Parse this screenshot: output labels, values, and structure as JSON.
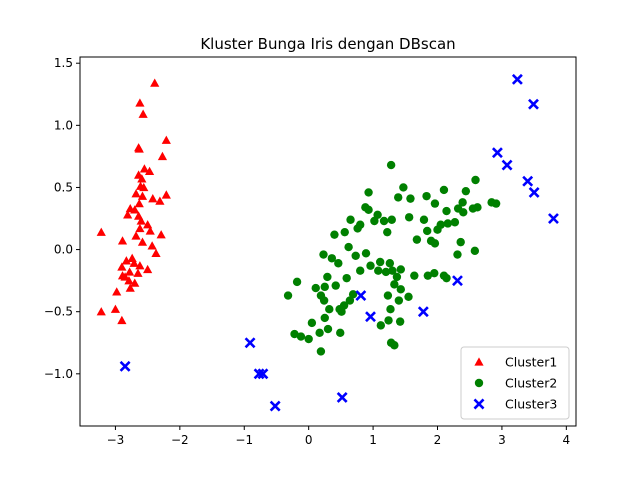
{
  "chart_data": {
    "type": "scatter",
    "title": "Kluster Bunga Iris dengan DBscan",
    "xlabel": "",
    "ylabel": "",
    "xlim": [
      -3.55,
      4.15
    ],
    "ylim": [
      -1.42,
      1.55
    ],
    "x_ticks": [
      -3,
      -2,
      -1,
      0,
      1,
      2,
      3,
      4
    ],
    "y_ticks": [
      -1.0,
      -0.5,
      0.0,
      0.5,
      1.0,
      1.5
    ],
    "x_tick_labels": [
      "−3",
      "−2",
      "−1",
      "0",
      "1",
      "2",
      "3",
      "4"
    ],
    "y_tick_labels": [
      "−1.0",
      "−0.5",
      "0.0",
      "0.5",
      "1.0",
      "1.5"
    ],
    "grid": false,
    "legend_position": "lower-right",
    "series": [
      {
        "name": "Cluster1",
        "color": "#ff0000",
        "marker": "triangle",
        "points": [
          [
            -2.39,
            1.34
          ],
          [
            -2.62,
            1.18
          ],
          [
            -2.57,
            1.09
          ],
          [
            -2.21,
            0.88
          ],
          [
            -2.64,
            0.82
          ],
          [
            -2.63,
            0.81
          ],
          [
            -2.27,
            0.75
          ],
          [
            -2.55,
            0.65
          ],
          [
            -2.47,
            0.63
          ],
          [
            -2.64,
            0.6
          ],
          [
            -2.59,
            0.57
          ],
          [
            -2.61,
            0.51
          ],
          [
            -2.56,
            0.5
          ],
          [
            -2.68,
            0.45
          ],
          [
            -2.21,
            0.44
          ],
          [
            -2.58,
            0.43
          ],
          [
            -2.42,
            0.41
          ],
          [
            -2.31,
            0.39
          ],
          [
            -2.63,
            0.37
          ],
          [
            -2.77,
            0.33
          ],
          [
            -2.7,
            0.32
          ],
          [
            -2.81,
            0.28
          ],
          [
            -2.64,
            0.27
          ],
          [
            -2.6,
            0.23
          ],
          [
            -2.5,
            0.2
          ],
          [
            -2.62,
            0.17
          ],
          [
            -3.22,
            0.14
          ],
          [
            -2.46,
            0.15
          ],
          [
            -2.68,
            0.11
          ],
          [
            -2.29,
            0.12
          ],
          [
            -2.89,
            0.07
          ],
          [
            -2.58,
            0.06
          ],
          [
            -2.43,
            0.03
          ],
          [
            -2.37,
            -0.03
          ],
          [
            -2.74,
            -0.07
          ],
          [
            -2.9,
            -0.14
          ],
          [
            -2.83,
            -0.09
          ],
          [
            -2.71,
            -0.11
          ],
          [
            -2.62,
            -0.13
          ],
          [
            -2.5,
            -0.16
          ],
          [
            -2.78,
            -0.18
          ],
          [
            -2.89,
            -0.21
          ],
          [
            -2.65,
            -0.19
          ],
          [
            -2.79,
            -0.25
          ],
          [
            -2.7,
            -0.27
          ],
          [
            -2.85,
            -0.22
          ],
          [
            -2.77,
            -0.31
          ],
          [
            -2.98,
            -0.34
          ],
          [
            -3.22,
            -0.5
          ],
          [
            -3.0,
            -0.48
          ],
          [
            -2.9,
            -0.57
          ]
        ]
      },
      {
        "name": "Cluster2",
        "color": "#008000",
        "marker": "circle",
        "points": [
          [
            1.28,
            0.68
          ],
          [
            1.47,
            0.5
          ],
          [
            1.58,
            0.41
          ],
          [
            1.39,
            0.42
          ],
          [
            0.93,
            0.46
          ],
          [
            0.93,
            0.32
          ],
          [
            0.8,
            0.2
          ],
          [
            0.88,
            0.34
          ],
          [
            1.07,
            0.28
          ],
          [
            1.17,
            0.23
          ],
          [
            0.76,
            0.17
          ],
          [
            1.02,
            0.23
          ],
          [
            1.22,
            0.14
          ],
          [
            1.29,
            0.24
          ],
          [
            1.56,
            0.26
          ],
          [
            1.79,
            0.24
          ],
          [
            1.83,
            0.43
          ],
          [
            1.96,
            0.37
          ],
          [
            2.14,
            0.31
          ],
          [
            2.32,
            0.33
          ],
          [
            2.39,
            0.38
          ],
          [
            2.4,
            0.3
          ],
          [
            2.59,
            0.56
          ],
          [
            2.44,
            0.47
          ],
          [
            2.62,
            0.34
          ],
          [
            2.84,
            0.38
          ],
          [
            2.55,
            0.33
          ],
          [
            2.91,
            0.37
          ],
          [
            2.1,
            0.48
          ],
          [
            2.27,
            0.22
          ],
          [
            2.0,
            0.16
          ],
          [
            2.05,
            0.2
          ],
          [
            1.9,
            0.07
          ],
          [
            1.96,
            0.05
          ],
          [
            1.68,
            0.08
          ],
          [
            1.84,
            0.15
          ],
          [
            2.58,
            -0.01
          ],
          [
            2.31,
            -0.04
          ],
          [
            2.16,
            0.21
          ],
          [
            2.36,
            0.06
          ],
          [
            0.65,
            0.24
          ],
          [
            0.56,
            0.14
          ],
          [
            0.62,
            0.02
          ],
          [
            0.4,
            0.12
          ],
          [
            0.23,
            -0.04
          ],
          [
            0.46,
            -0.11
          ],
          [
            0.36,
            -0.07
          ],
          [
            0.59,
            -0.23
          ],
          [
            0.8,
            -0.17
          ],
          [
            0.73,
            -0.05
          ],
          [
            0.89,
            -0.03
          ],
          [
            0.96,
            -0.13
          ],
          [
            1.08,
            -0.17
          ],
          [
            1.11,
            -0.1
          ],
          [
            1.2,
            -0.18
          ],
          [
            1.26,
            -0.11
          ],
          [
            1.3,
            -0.17
          ],
          [
            1.37,
            -0.22
          ],
          [
            1.43,
            -0.16
          ],
          [
            1.33,
            -0.28
          ],
          [
            1.23,
            -0.37
          ],
          [
            1.27,
            -0.48
          ],
          [
            1.43,
            -0.32
          ],
          [
            1.55,
            -0.38
          ],
          [
            1.4,
            -0.41
          ],
          [
            1.24,
            -0.57
          ],
          [
            1.12,
            -0.61
          ],
          [
            1.42,
            -0.58
          ],
          [
            1.28,
            -0.75
          ],
          [
            1.33,
            -0.77
          ],
          [
            1.85,
            -0.21
          ],
          [
            1.95,
            -0.19
          ],
          [
            2.1,
            -0.21
          ],
          [
            2.14,
            -0.23
          ],
          [
            1.64,
            -0.21
          ],
          [
            -0.18,
            -0.26
          ],
          [
            -0.32,
            -0.37
          ],
          [
            0.11,
            -0.31
          ],
          [
            0.25,
            -0.3
          ],
          [
            0.29,
            -0.22
          ],
          [
            0.19,
            -0.37
          ],
          [
            0.24,
            -0.41
          ],
          [
            0.42,
            -0.29
          ],
          [
            0.55,
            -0.45
          ],
          [
            0.69,
            -0.36
          ],
          [
            0.64,
            -0.41
          ],
          [
            0.32,
            -0.48
          ],
          [
            0.25,
            -0.55
          ],
          [
            0.48,
            -0.48
          ],
          [
            0.51,
            -0.5
          ],
          [
            0.05,
            -0.59
          ],
          [
            0.3,
            -0.64
          ],
          [
            0.17,
            -0.67
          ],
          [
            0.49,
            -0.67
          ],
          [
            -0.22,
            -0.68
          ],
          [
            -0.12,
            -0.7
          ],
          [
            0.0,
            -0.72
          ],
          [
            0.19,
            -0.82
          ]
        ]
      },
      {
        "name": "Cluster3",
        "color": "#0000ff",
        "marker": "x",
        "points": [
          [
            3.24,
            1.37
          ],
          [
            3.49,
            1.17
          ],
          [
            2.93,
            0.78
          ],
          [
            3.08,
            0.68
          ],
          [
            3.4,
            0.55
          ],
          [
            3.5,
            0.46
          ],
          [
            3.8,
            0.25
          ],
          [
            2.31,
            -0.25
          ],
          [
            0.81,
            -0.37
          ],
          [
            1.78,
            -0.5
          ],
          [
            0.96,
            -0.54
          ],
          [
            -0.91,
            -0.75
          ],
          [
            -0.77,
            -1.0
          ],
          [
            -0.71,
            -1.0
          ],
          [
            0.52,
            -1.19
          ],
          [
            -2.85,
            -0.94
          ],
          [
            -0.52,
            -1.26
          ]
        ]
      }
    ]
  }
}
